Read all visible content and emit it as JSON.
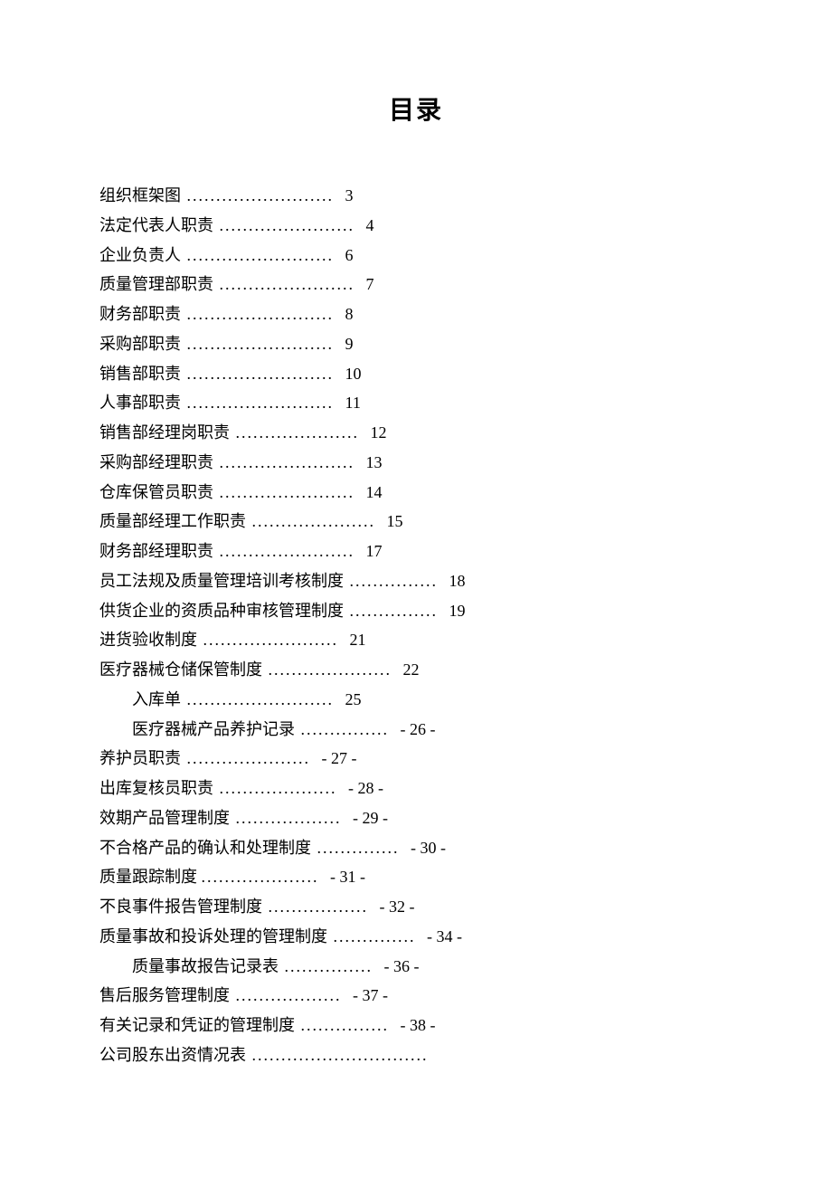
{
  "title": "目录",
  "fontsize_title": 28,
  "fontsize_body": 18,
  "line_height": 1.82,
  "text_color": "#000000",
  "background_color": "#ffffff",
  "dot_char": ".",
  "entries": [
    {
      "title": "组织框架图",
      "page": "3",
      "indent": 0,
      "dots": 25
    },
    {
      "title": "法定代表人职责",
      "page": "4",
      "indent": 0,
      "dots": 23
    },
    {
      "title": "企业负责人",
      "page": "6",
      "indent": 0,
      "dots": 25
    },
    {
      "title": "质量管理部职责",
      "page": "7",
      "indent": 0,
      "dots": 23
    },
    {
      "title": "财务部职责",
      "page": "8",
      "indent": 0,
      "dots": 25
    },
    {
      "title": "采购部职责",
      "page": "9",
      "indent": 0,
      "dots": 25
    },
    {
      "title": "销售部职责",
      "page": "10",
      "indent": 0,
      "dots": 25
    },
    {
      "title": "人事部职责",
      "page": "11",
      "indent": 0,
      "dots": 25
    },
    {
      "title": "销售部经理岗职责",
      "page": "12",
      "indent": 0,
      "dots": 21
    },
    {
      "title": "采购部经理职责",
      "page": "13",
      "indent": 0,
      "dots": 23
    },
    {
      "title": "仓库保管员职责",
      "page": "14",
      "indent": 0,
      "dots": 23
    },
    {
      "title": "质量部经理工作职责",
      "page": "15",
      "indent": 0,
      "dots": 21
    },
    {
      "title": "财务部经理职责",
      "page": "17",
      "indent": 0,
      "dots": 23
    },
    {
      "title": "员工法规及质量管理培训考核制度",
      "page": "18",
      "indent": 0,
      "dots": 15
    },
    {
      "title": "供货企业的资质品种审核管理制度",
      "page": "19",
      "indent": 0,
      "dots": 15
    },
    {
      "title": "进货验收制度",
      "page": "21",
      "indent": 0,
      "dots": 23
    },
    {
      "title": "医疗器械仓储保管制度",
      "page": "22",
      "indent": 0,
      "dots": 21
    },
    {
      "title": "入库单",
      "page": "25",
      "indent": 1,
      "dots": 25
    },
    {
      "title": "医疗器械产品养护记录",
      "page": "- 26 -",
      "indent": 1,
      "dots": 15
    },
    {
      "title": "养护员职责",
      "page": "- 27 -",
      "indent": 0,
      "dots": 21
    },
    {
      "title": "出库复核员职责",
      "page": "- 28 -",
      "indent": 0,
      "dots": 20
    },
    {
      "title": "效期产品管理制度",
      "page": "- 29 -",
      "indent": 0,
      "dots": 18
    },
    {
      "title": "不合格产品的确认和处理制度",
      "page": "- 30 -",
      "indent": 0,
      "dots": 14
    },
    {
      "title": "质量跟踪制度 ",
      "page": "- 31 -",
      "indent": 0,
      "dots": 20
    },
    {
      "title": "不良事件报告管理制度",
      "page": "- 32 -",
      "indent": 0,
      "dots": 17
    },
    {
      "title": "质量事故和投诉处理的管理制度",
      "page": "- 34 -",
      "indent": 0,
      "dots": 14
    },
    {
      "title": "质量事故报告记录表",
      "page": "- 36 -",
      "indent": 1,
      "dots": 15
    },
    {
      "title": "售后服务管理制度",
      "page": "- 37 -",
      "indent": 0,
      "dots": 18
    },
    {
      "title": "有关记录和凭证的管理制度",
      "page": "- 38 -",
      "indent": 0,
      "dots": 15
    },
    {
      "title": "公司股东出资情况表",
      "page": "",
      "indent": 0,
      "dots": 30
    }
  ]
}
